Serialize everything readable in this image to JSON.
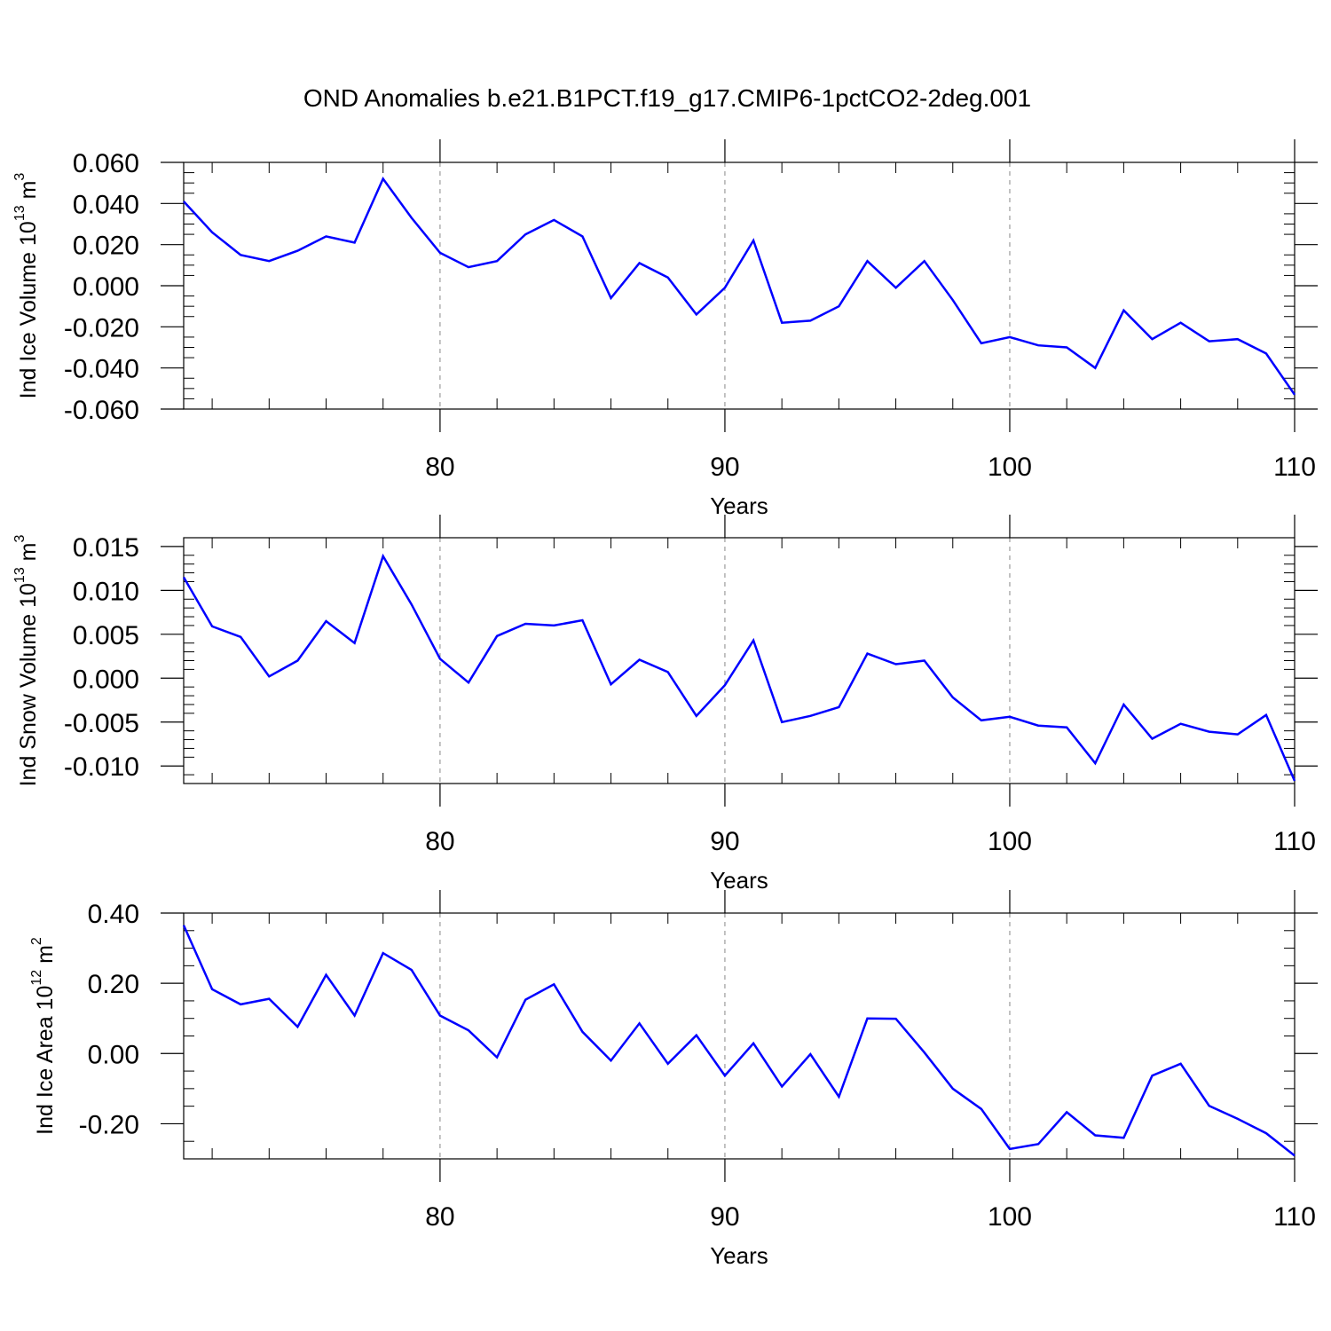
{
  "title": "OND Anomalies b.e21.B1PCT.f19_g17.CMIP6-1pctCO2-2deg.001",
  "line_color": "#0000ff",
  "chart_data": [
    {
      "type": "line",
      "ylabel": "Ind Ice Volume 10",
      "ylabel_exp": "13",
      "ylabel_unit": " m",
      "ylabel_unit_exp": "3",
      "xlabel": "Years",
      "xlim": [
        71,
        110
      ],
      "ylim": [
        -0.06,
        0.06
      ],
      "xticks": [
        "80",
        "90",
        "100",
        "110"
      ],
      "yticks": [
        "0.060",
        "0.040",
        "0.020",
        "0.000",
        "-0.020",
        "-0.040",
        "-0.060"
      ],
      "ytick_values": [
        0.06,
        0.04,
        0.02,
        0.0,
        -0.02,
        -0.04,
        -0.06
      ],
      "grid": "vertical dashed at major x ticks",
      "x": [
        71,
        72,
        73,
        74,
        75,
        76,
        77,
        78,
        79,
        80,
        81,
        82,
        83,
        84,
        85,
        86,
        87,
        88,
        89,
        90,
        91,
        92,
        93,
        94,
        95,
        96,
        97,
        98,
        99,
        100,
        101,
        102,
        103,
        104,
        105,
        106,
        107,
        108,
        109,
        110
      ],
      "series": [
        {
          "values": [
            0.041,
            0.026,
            0.015,
            0.012,
            0.017,
            0.024,
            0.021,
            0.052,
            0.033,
            0.016,
            0.009,
            0.012,
            0.025,
            0.032,
            0.024,
            -0.006,
            0.011,
            0.004,
            -0.014,
            -0.001,
            0.022,
            -0.018,
            -0.017,
            -0.01,
            0.012,
            -0.001,
            0.012,
            -0.007,
            -0.028,
            -0.025,
            -0.029,
            -0.03,
            -0.04,
            -0.012,
            -0.026,
            -0.018,
            -0.027,
            -0.026,
            -0.033,
            -0.053
          ]
        }
      ]
    },
    {
      "type": "line",
      "ylabel": "Ind Snow Volume 10",
      "ylabel_exp": "13",
      "ylabel_unit": " m",
      "ylabel_unit_exp": "3",
      "xlabel": "Years",
      "xlim": [
        71,
        110
      ],
      "ylim": [
        -0.012,
        0.016
      ],
      "xticks": [
        "80",
        "90",
        "100",
        "110"
      ],
      "yticks": [
        "0.015",
        "0.010",
        "0.005",
        "0.000",
        "-0.005",
        "-0.010"
      ],
      "ytick_values": [
        0.015,
        0.01,
        0.005,
        0.0,
        -0.005,
        -0.01
      ],
      "grid": "vertical dashed at major x ticks",
      "x": [
        71,
        72,
        73,
        74,
        75,
        76,
        77,
        78,
        79,
        80,
        81,
        82,
        83,
        84,
        85,
        86,
        87,
        88,
        89,
        90,
        91,
        92,
        93,
        94,
        95,
        96,
        97,
        98,
        99,
        100,
        101,
        102,
        103,
        104,
        105,
        106,
        107,
        108,
        109,
        110
      ],
      "series": [
        {
          "values": [
            0.0115,
            0.0059,
            0.0047,
            0.0002,
            0.002,
            0.0065,
            0.004,
            0.0139,
            0.0084,
            0.0022,
            -0.0005,
            0.0048,
            0.0062,
            0.006,
            0.0066,
            -0.0007,
            0.0021,
            0.0007,
            -0.0043,
            -0.0008,
            0.0043,
            -0.005,
            -0.0043,
            -0.0033,
            0.0028,
            0.0016,
            0.002,
            -0.0022,
            -0.0048,
            -0.0044,
            -0.0054,
            -0.0056,
            -0.0097,
            -0.003,
            -0.0069,
            -0.0052,
            -0.0061,
            -0.0064,
            -0.0042,
            -0.0117
          ]
        }
      ]
    },
    {
      "type": "line",
      "ylabel": "Ind Ice Area 10",
      "ylabel_exp": "12",
      "ylabel_unit": " m",
      "ylabel_unit_exp": "2",
      "xlabel": "Years",
      "xlim": [
        71,
        110
      ],
      "ylim": [
        -0.3,
        0.4
      ],
      "xticks": [
        "80",
        "90",
        "100",
        "110"
      ],
      "yticks": [
        "0.40",
        "0.20",
        "0.00",
        "-0.20"
      ],
      "ytick_values": [
        0.4,
        0.2,
        0.0,
        -0.2
      ],
      "grid": "vertical dashed at major x ticks",
      "x": [
        71,
        72,
        73,
        74,
        75,
        76,
        77,
        78,
        79,
        80,
        81,
        82,
        83,
        84,
        85,
        86,
        87,
        88,
        89,
        90,
        91,
        92,
        93,
        94,
        95,
        96,
        97,
        98,
        99,
        100,
        101,
        102,
        103,
        104,
        105,
        106,
        107,
        108,
        109,
        110
      ],
      "series": [
        {
          "values": [
            0.365,
            0.183,
            0.14,
            0.156,
            0.076,
            0.224,
            0.108,
            0.286,
            0.238,
            0.108,
            0.066,
            -0.011,
            0.153,
            0.197,
            0.062,
            -0.02,
            0.086,
            -0.029,
            0.052,
            -0.063,
            0.029,
            -0.094,
            -0.002,
            -0.123,
            0.1,
            0.099,
            0.003,
            -0.1,
            -0.158,
            -0.272,
            -0.258,
            -0.167,
            -0.233,
            -0.24,
            -0.063,
            -0.029,
            -0.149,
            -0.186,
            -0.227,
            -0.291
          ]
        }
      ]
    }
  ]
}
